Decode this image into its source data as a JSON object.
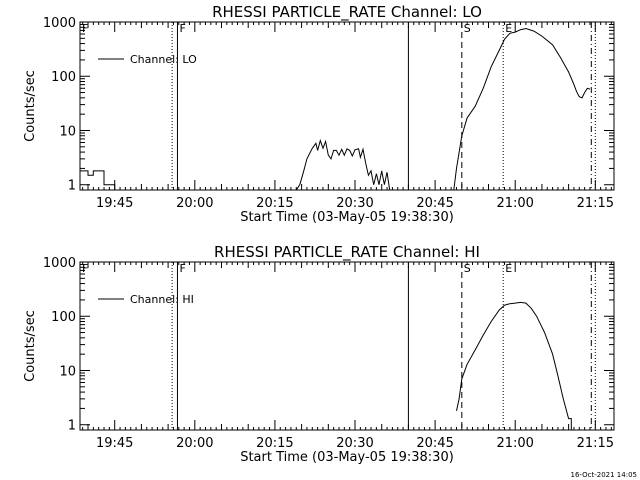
{
  "footer_timestamp": "16-Oct-2021 14:05",
  "chart_data": [
    {
      "type": "line",
      "title": "RHESSI PARTICLE_RATE Channel: LO",
      "xlabel": "Start Time (03-May-05 19:38:30)",
      "ylabel": "Counts/sec",
      "yscale": "log",
      "ylim": [
        0.8,
        1000
      ],
      "xlim": [
        "19:38:30",
        "21:18:30"
      ],
      "xticks": [
        "19:45",
        "20:00",
        "20:15",
        "20:30",
        "20:45",
        "21:00",
        "21:15"
      ],
      "yticks": [
        "1",
        "10",
        "100",
        "1000"
      ],
      "legend_position": "top-left",
      "series": [
        {
          "name": "Channel: LO",
          "color": "#000000",
          "segments": [
            [
              [
                "19:38:30",
                1.8
              ],
              [
                "19:40:00",
                1.8
              ],
              [
                "19:40:00",
                1.5
              ],
              [
                "19:41:00",
                1.5
              ],
              [
                "19:41:00",
                1.8
              ],
              [
                "19:43:00",
                1.8
              ],
              [
                "19:43:00",
                1.0
              ],
              [
                "19:45:00",
                1.0
              ],
              [
                "19:45:00",
                0.8
              ]
            ],
            [
              [
                "20:19:00",
                0.8
              ],
              [
                "20:19:40",
                1.0
              ],
              [
                "20:20:20",
                1.7
              ],
              [
                "20:21:00",
                3.0
              ],
              [
                "20:22:00",
                4.7
              ],
              [
                "20:22:40",
                5.8
              ],
              [
                "20:23:00",
                4.3
              ],
              [
                "20:23:30",
                6.5
              ],
              [
                "20:24:00",
                4.7
              ],
              [
                "20:24:30",
                6.3
              ],
              [
                "20:25:00",
                3.5
              ],
              [
                "20:25:30",
                3.0
              ],
              [
                "20:26:00",
                4.3
              ],
              [
                "20:26:30",
                4.3
              ],
              [
                "20:27:00",
                3.5
              ],
              [
                "20:27:30",
                4.5
              ],
              [
                "20:28:00",
                3.5
              ],
              [
                "20:28:30",
                4.6
              ],
              [
                "20:29:00",
                4.3
              ],
              [
                "20:29:30",
                3.4
              ],
              [
                "20:30:00",
                4.4
              ],
              [
                "20:30:40",
                4.6
              ],
              [
                "20:31:00",
                3.2
              ],
              [
                "20:31:30",
                4.5
              ],
              [
                "20:32:00",
                2.5
              ],
              [
                "20:32:30",
                1.5
              ],
              [
                "20:33:00",
                1.8
              ],
              [
                "20:33:30",
                1.0
              ],
              [
                "20:34:00",
                1.6
              ],
              [
                "20:34:30",
                1.0
              ],
              [
                "20:35:00",
                1.8
              ],
              [
                "20:35:30",
                1.0
              ],
              [
                "20:36:00",
                1.7
              ],
              [
                "20:36:30",
                0.8
              ]
            ],
            [
              [
                "20:48:30",
                0.8
              ],
              [
                "20:49:00",
                2.0
              ],
              [
                "20:50:00",
                8.0
              ],
              [
                "20:51:00",
                17
              ],
              [
                "20:52:30",
                28
              ],
              [
                "20:54:00",
                60
              ],
              [
                "20:55:30",
                150
              ],
              [
                "20:57:00",
                300
              ],
              [
                "20:58:00",
                480
              ],
              [
                "20:59:00",
                620
              ],
              [
                "21:00:00",
                650
              ],
              [
                "21:01:00",
                720
              ],
              [
                "21:02:00",
                760
              ],
              [
                "21:03:30",
                680
              ],
              [
                "21:05:00",
                550
              ],
              [
                "21:07:00",
                380
              ],
              [
                "21:08:30",
                220
              ],
              [
                "21:10:00",
                120
              ],
              [
                "21:11:00",
                70
              ],
              [
                "21:11:30",
                52
              ],
              [
                "21:12:00",
                42
              ],
              [
                "21:12:30",
                40
              ],
              [
                "21:13:00",
                50
              ],
              [
                "21:13:30",
                60
              ],
              [
                "21:14:00",
                58
              ]
            ]
          ]
        }
      ],
      "markers": [
        {
          "label": "F",
          "times": [
            "19:55:45",
            "19:56:45"
          ],
          "style": "dotted-solid"
        },
        {
          "label": "",
          "times": [
            "20:40:00"
          ],
          "style": "solid"
        },
        {
          "label": "S",
          "times": [
            "20:50:00"
          ],
          "style": "dashed"
        },
        {
          "label": "E",
          "times": [
            "20:57:45"
          ],
          "style": "dotted"
        },
        {
          "label": "",
          "times": [
            "21:14:15",
            "21:15:00"
          ],
          "style": "dashdot-dotted"
        }
      ],
      "corner_label": "F"
    },
    {
      "type": "line",
      "title": "RHESSI PARTICLE_RATE Channel: HI",
      "xlabel": "Start Time (03-May-05 19:38:30)",
      "ylabel": "Counts/sec",
      "yscale": "log",
      "ylim": [
        0.8,
        1000
      ],
      "xlim": [
        "19:38:30",
        "21:18:30"
      ],
      "xticks": [
        "19:45",
        "20:00",
        "20:15",
        "20:30",
        "20:45",
        "21:00",
        "21:15"
      ],
      "yticks": [
        "1",
        "10",
        "100",
        "1000"
      ],
      "legend_position": "top-left",
      "series": [
        {
          "name": "Channel: HI",
          "color": "#000000",
          "segments": [
            [
              [
                "20:49:00",
                1.8
              ],
              [
                "20:49:30",
                3.0
              ],
              [
                "20:50:00",
                7.0
              ],
              [
                "20:51:00",
                13
              ],
              [
                "20:52:30",
                24
              ],
              [
                "20:54:00",
                45
              ],
              [
                "20:55:30",
                80
              ],
              [
                "20:57:00",
                130
              ],
              [
                "20:58:00",
                160
              ],
              [
                "20:59:00",
                170
              ],
              [
                "21:00:00",
                175
              ],
              [
                "21:01:00",
                180
              ],
              [
                "21:02:00",
                175
              ],
              [
                "21:03:00",
                140
              ],
              [
                "21:04:00",
                100
              ],
              [
                "21:05:30",
                50
              ],
              [
                "21:07:00",
                20
              ],
              [
                "21:08:00",
                8
              ],
              [
                "21:09:00",
                3.0
              ],
              [
                "21:10:00",
                1.3
              ],
              [
                "21:10:30",
                1.3
              ],
              [
                "21:10:30",
                0.8
              ]
            ]
          ]
        }
      ],
      "markers": [
        {
          "label": "F",
          "times": [
            "19:55:45",
            "19:56:45"
          ],
          "style": "dotted-solid"
        },
        {
          "label": "",
          "times": [
            "20:40:00"
          ],
          "style": "solid"
        },
        {
          "label": "S",
          "times": [
            "20:50:00"
          ],
          "style": "dashed"
        },
        {
          "label": "E",
          "times": [
            "20:57:45"
          ],
          "style": "dotted"
        },
        {
          "label": "",
          "times": [
            "21:14:15",
            "21:15:00"
          ],
          "style": "dashdot-dotted"
        }
      ],
      "corner_label": "F"
    }
  ]
}
